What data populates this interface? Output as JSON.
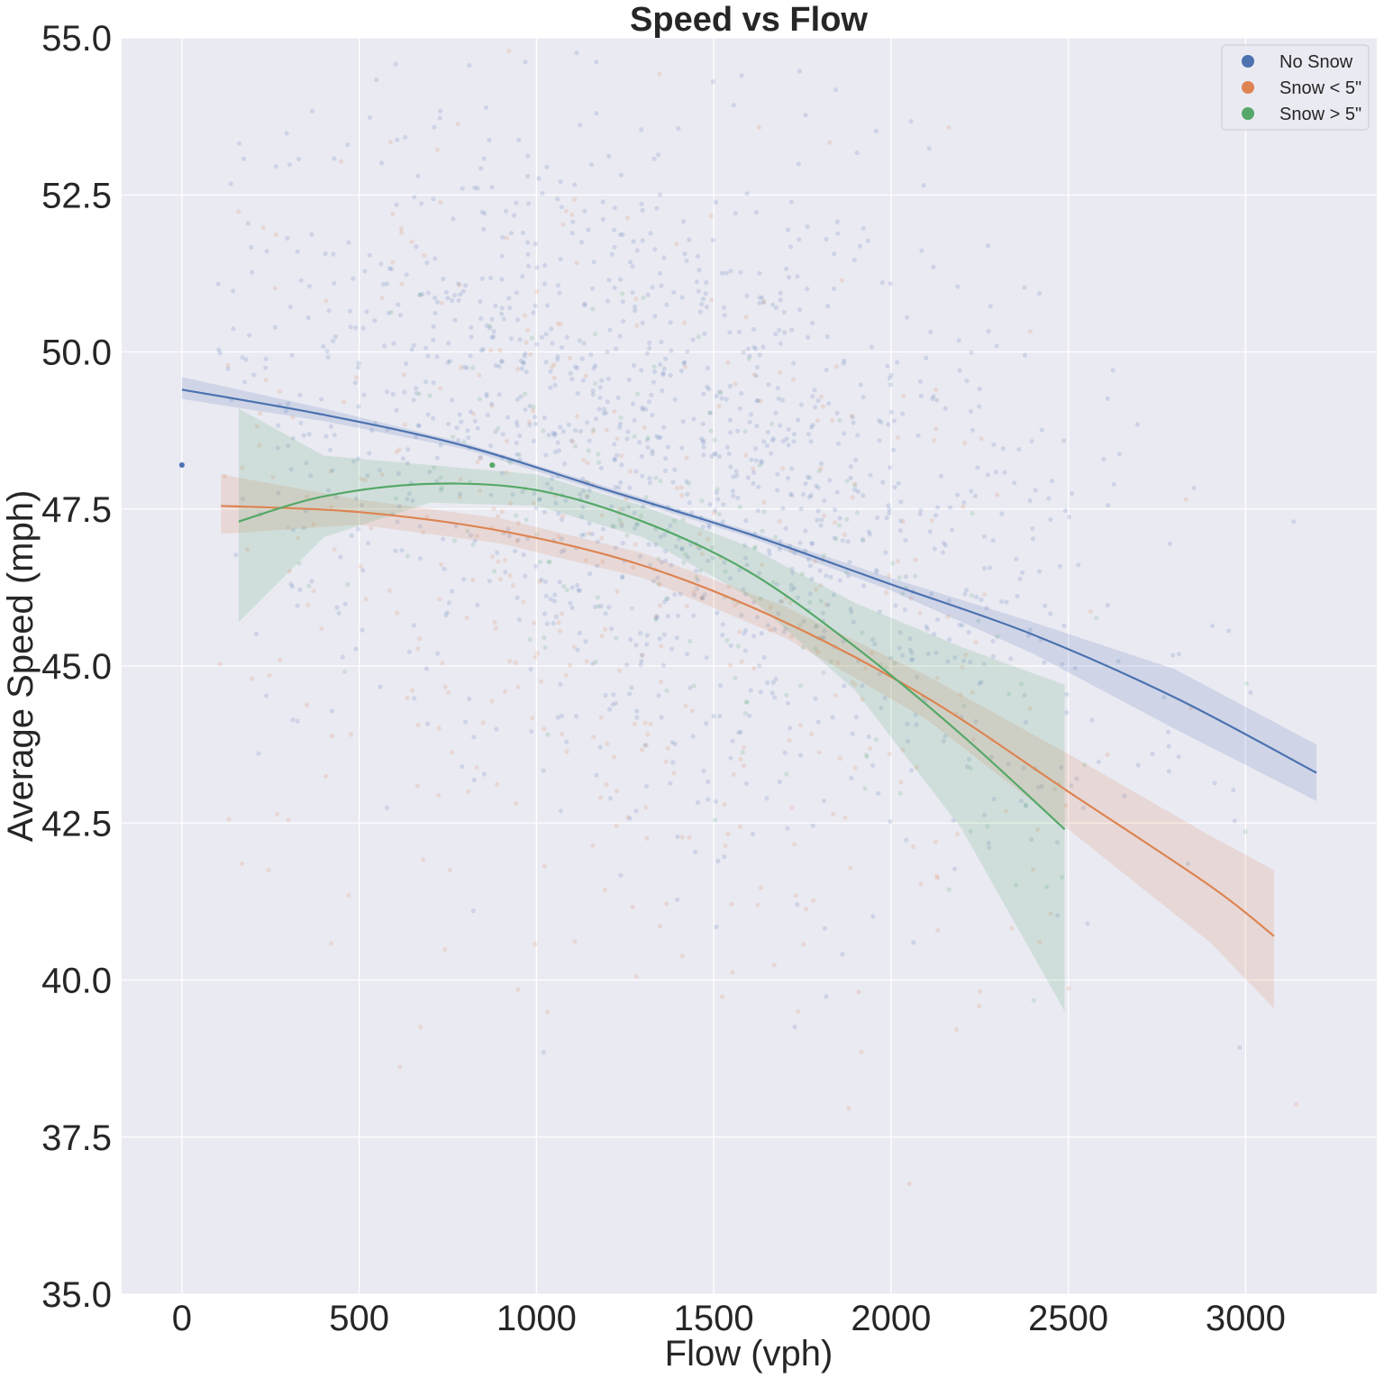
{
  "chart_data": {
    "type": "scatter",
    "title": "Speed vs Flow",
    "xlabel": "Flow (vph)",
    "ylabel": "Average Speed (mph)",
    "xlim": [
      -170,
      3370
    ],
    "ylim": [
      35.0,
      55.0
    ],
    "x_ticks": [
      "0",
      "500",
      "1000",
      "1500",
      "2000",
      "2500",
      "3000"
    ],
    "x_tick_values": [
      0,
      500,
      1000,
      1500,
      2000,
      2500,
      3000
    ],
    "y_ticks": [
      "35.0",
      "37.5",
      "40.0",
      "42.5",
      "45.0",
      "47.5",
      "50.0",
      "52.5",
      "55.0"
    ],
    "y_tick_values": [
      35.0,
      37.5,
      40.0,
      42.5,
      45.0,
      47.5,
      50.0,
      52.5,
      55.0
    ],
    "grid": true,
    "background": "#eaeaf2",
    "legend_placement": "top-right",
    "series": [
      {
        "name": "No Snow",
        "color": "#4c72b0",
        "fit_x": [
          0,
          400,
          800,
          1200,
          1600,
          2000,
          2400,
          2800,
          3200
        ],
        "fit_y": [
          49.4,
          49.0,
          48.5,
          47.8,
          47.1,
          46.3,
          45.5,
          44.5,
          43.3
        ],
        "ci_lower": [
          49.25,
          48.9,
          48.45,
          47.75,
          47.05,
          46.2,
          45.2,
          44.0,
          42.85
        ],
        "ci_upper": [
          49.6,
          49.1,
          48.55,
          47.85,
          47.15,
          46.4,
          45.7,
          44.95,
          43.75
        ],
        "cluster_center": [
          1350,
          48.5
        ],
        "cluster_spread": [
          650,
          2.6
        ],
        "point_count": 1400
      },
      {
        "name": "Snow < 5\"",
        "color": "#dd8452",
        "fit_x": [
          110,
          500,
          900,
          1300,
          1700,
          2100,
          2500,
          2900,
          3080
        ],
        "fit_y": [
          47.55,
          47.45,
          47.15,
          46.6,
          45.7,
          44.5,
          43.0,
          41.5,
          40.7
        ],
        "ci_lower": [
          47.1,
          47.25,
          46.95,
          46.4,
          45.45,
          44.15,
          42.4,
          40.6,
          39.55
        ],
        "ci_upper": [
          48.05,
          47.65,
          47.35,
          46.8,
          45.95,
          44.85,
          43.6,
          42.3,
          41.75
        ],
        "cluster_center": [
          1200,
          46.5
        ],
        "cluster_spread": [
          700,
          3.4
        ],
        "point_count": 450
      },
      {
        "name": "Snow > 5\"",
        "color": "#55a868",
        "fit_x": [
          160,
          400,
          700,
          1000,
          1300,
          1600,
          1900,
          2200,
          2490
        ],
        "fit_y": [
          47.3,
          47.7,
          47.9,
          47.8,
          47.3,
          46.5,
          45.3,
          43.9,
          42.4
        ],
        "ci_lower": [
          45.7,
          47.05,
          47.6,
          47.55,
          47.05,
          46.1,
          44.6,
          42.4,
          39.5
        ],
        "ci_upper": [
          49.1,
          48.35,
          48.2,
          48.05,
          47.55,
          46.9,
          46.0,
          45.3,
          44.7
        ],
        "cluster_center": [
          1500,
          47.0
        ],
        "cluster_spread": [
          500,
          1.6
        ],
        "point_count": 180
      }
    ],
    "isolated_points": [
      {
        "series": "No Snow",
        "x": 0,
        "y": 48.2
      },
      {
        "series": "Snow > 5\"",
        "x": 875,
        "y": 48.2
      }
    ]
  }
}
